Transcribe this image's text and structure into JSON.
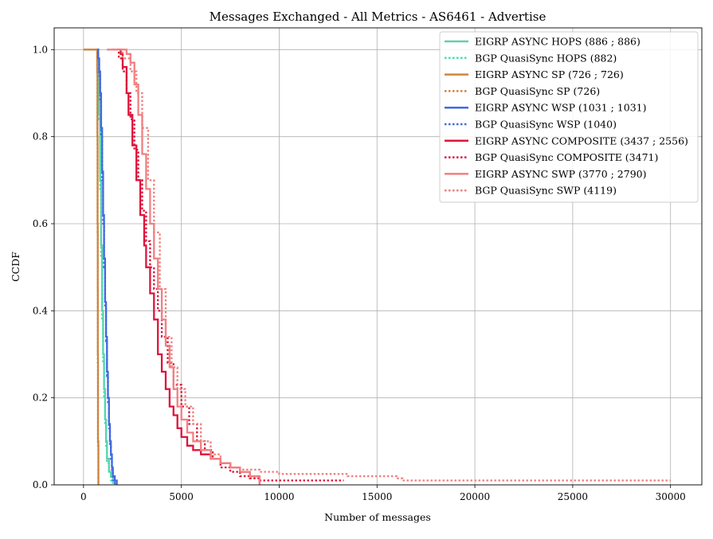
{
  "chart_data": {
    "type": "line",
    "title": "Messages Exchanged - All Metrics - AS6461 - Advertise",
    "xlabel": "Number of messages",
    "ylabel": "CCDF",
    "xlim": [
      -1500,
      31600
    ],
    "ylim": [
      0,
      1.05
    ],
    "xticks": [
      0,
      5000,
      10000,
      15000,
      20000,
      25000,
      30000
    ],
    "xtick_labels": [
      "0",
      "5000",
      "10000",
      "15000",
      "20000",
      "25000",
      "30000"
    ],
    "yticks": [
      0,
      0.2,
      0.4,
      0.6,
      0.8,
      1.0
    ],
    "ytick_labels": [
      "0.0",
      "0.2",
      "0.4",
      "0.6",
      "0.8",
      "1.0"
    ],
    "grid": true,
    "legend_position": "top-right",
    "series": [
      {
        "name": "EIGRP ASYNC HOPS (886 ; 886)",
        "color": "#66cdaa",
        "dash": "solid",
        "x": [
          600,
          700,
          750,
          800,
          850,
          900,
          950,
          1000,
          1050,
          1100,
          1150,
          1200,
          1300,
          1400,
          1500,
          1600
        ],
        "y": [
          1.0,
          1.0,
          0.95,
          0.85,
          0.7,
          0.55,
          0.4,
          0.3,
          0.22,
          0.15,
          0.1,
          0.06,
          0.03,
          0.02,
          0.01,
          0.0
        ]
      },
      {
        "name": "BGP QuasiSync HOPS (882)",
        "color": "#40e0b0",
        "dash": "dotted",
        "x": [
          600,
          700,
          750,
          800,
          850,
          900,
          950,
          1000,
          1050,
          1100,
          1150,
          1200,
          1300,
          1400,
          1500
        ],
        "y": [
          1.0,
          1.0,
          0.95,
          0.84,
          0.68,
          0.52,
          0.38,
          0.28,
          0.2,
          0.14,
          0.09,
          0.05,
          0.03,
          0.01,
          0.0
        ]
      },
      {
        "name": "EIGRP ASYNC SP (726 ; 726)",
        "color": "#cd853f",
        "dash": "solid",
        "x": [
          0,
          690,
          700,
          710,
          720,
          726,
          730,
          740,
          760
        ],
        "y": [
          1.0,
          1.0,
          0.95,
          0.8,
          0.6,
          0.45,
          0.3,
          0.1,
          0.0
        ]
      },
      {
        "name": "BGP QuasiSync SP (726)",
        "color": "#cd853f",
        "dash": "dotted",
        "x": [
          0,
          690,
          700,
          710,
          720,
          726,
          730,
          740,
          760
        ],
        "y": [
          1.0,
          1.0,
          0.94,
          0.78,
          0.58,
          0.42,
          0.28,
          0.09,
          0.0
        ]
      },
      {
        "name": "EIGRP ASYNC WSP (1031 ; 1031)",
        "color": "#4169e1",
        "dash": "solid",
        "x": [
          700,
          750,
          800,
          850,
          900,
          950,
          1000,
          1050,
          1100,
          1150,
          1200,
          1250,
          1300,
          1350,
          1400,
          1450,
          1500,
          1600,
          1700
        ],
        "y": [
          1.0,
          0.98,
          0.95,
          0.9,
          0.82,
          0.72,
          0.62,
          0.52,
          0.42,
          0.34,
          0.26,
          0.2,
          0.14,
          0.1,
          0.07,
          0.04,
          0.02,
          0.01,
          0.0
        ]
      },
      {
        "name": "BGP QuasiSync WSP (1040)",
        "color": "#4169e1",
        "dash": "dotted",
        "x": [
          700,
          750,
          800,
          850,
          900,
          950,
          1000,
          1050,
          1100,
          1150,
          1200,
          1250,
          1300,
          1350,
          1400,
          1450,
          1500,
          1600
        ],
        "y": [
          1.0,
          0.98,
          0.94,
          0.88,
          0.8,
          0.7,
          0.6,
          0.5,
          0.41,
          0.33,
          0.25,
          0.19,
          0.13,
          0.09,
          0.06,
          0.03,
          0.01,
          0.0
        ]
      },
      {
        "name": "EIGRP ASYNC COMPOSITE (3437 ; 2556)",
        "color": "#dc143c",
        "dash": "solid",
        "x": [
          1700,
          1900,
          2000,
          2200,
          2300,
          2500,
          2700,
          2900,
          3100,
          3200,
          3400,
          3600,
          3800,
          4000,
          4200,
          4400,
          4600,
          4800,
          5000,
          5300,
          5600,
          6000,
          6500,
          7000,
          7500,
          8000,
          8500,
          9000
        ],
        "y": [
          1.0,
          0.99,
          0.96,
          0.9,
          0.85,
          0.78,
          0.7,
          0.62,
          0.55,
          0.5,
          0.44,
          0.38,
          0.3,
          0.26,
          0.22,
          0.18,
          0.16,
          0.13,
          0.11,
          0.09,
          0.08,
          0.07,
          0.06,
          0.05,
          0.04,
          0.03,
          0.02,
          0.0
        ]
      },
      {
        "name": "BGP QuasiSync COMPOSITE (3471)",
        "color": "#dc143c",
        "dash": "dotted",
        "x": [
          1500,
          1800,
          2000,
          2200,
          2400,
          2600,
          2800,
          3000,
          3200,
          3400,
          3600,
          3800,
          4000,
          4300,
          4600,
          5000,
          5400,
          5800,
          6200,
          6600,
          7000,
          7500,
          8000,
          8500,
          9000,
          10000,
          12000,
          13300
        ],
        "y": [
          1.0,
          0.98,
          0.95,
          0.9,
          0.84,
          0.77,
          0.7,
          0.63,
          0.56,
          0.5,
          0.45,
          0.4,
          0.34,
          0.28,
          0.23,
          0.18,
          0.14,
          0.1,
          0.08,
          0.06,
          0.04,
          0.03,
          0.02,
          0.015,
          0.01,
          0.01,
          0.01,
          0.01
        ]
      },
      {
        "name": "EIGRP ASYNC SWP (3770 ; 2790)",
        "color": "#f08080",
        "dash": "solid",
        "x": [
          1200,
          1800,
          2200,
          2400,
          2600,
          2800,
          3000,
          3200,
          3400,
          3600,
          3800,
          4000,
          4200,
          4400,
          4600,
          4800,
          5000,
          5300,
          5600,
          6000,
          6500,
          7000,
          7500,
          8000,
          8500,
          9000
        ],
        "y": [
          1.0,
          1.0,
          0.99,
          0.97,
          0.92,
          0.85,
          0.76,
          0.68,
          0.6,
          0.52,
          0.45,
          0.38,
          0.32,
          0.27,
          0.22,
          0.18,
          0.15,
          0.12,
          0.1,
          0.08,
          0.06,
          0.05,
          0.04,
          0.03,
          0.02,
          0.0
        ]
      },
      {
        "name": "BGP QuasiSync SWP (4119)",
        "color": "#f08080",
        "dash": "dotted",
        "x": [
          1500,
          2000,
          2400,
          2700,
          3000,
          3300,
          3600,
          3900,
          4200,
          4500,
          4800,
          5200,
          5600,
          6000,
          6500,
          7000,
          7500,
          8000,
          9000,
          10000,
          13500,
          16000,
          16300,
          20000,
          25000,
          30000
        ],
        "y": [
          1.0,
          0.98,
          0.95,
          0.9,
          0.82,
          0.7,
          0.58,
          0.45,
          0.34,
          0.27,
          0.22,
          0.18,
          0.14,
          0.1,
          0.07,
          0.05,
          0.04,
          0.035,
          0.03,
          0.025,
          0.02,
          0.015,
          0.01,
          0.01,
          0.01,
          0.01
        ]
      }
    ]
  }
}
